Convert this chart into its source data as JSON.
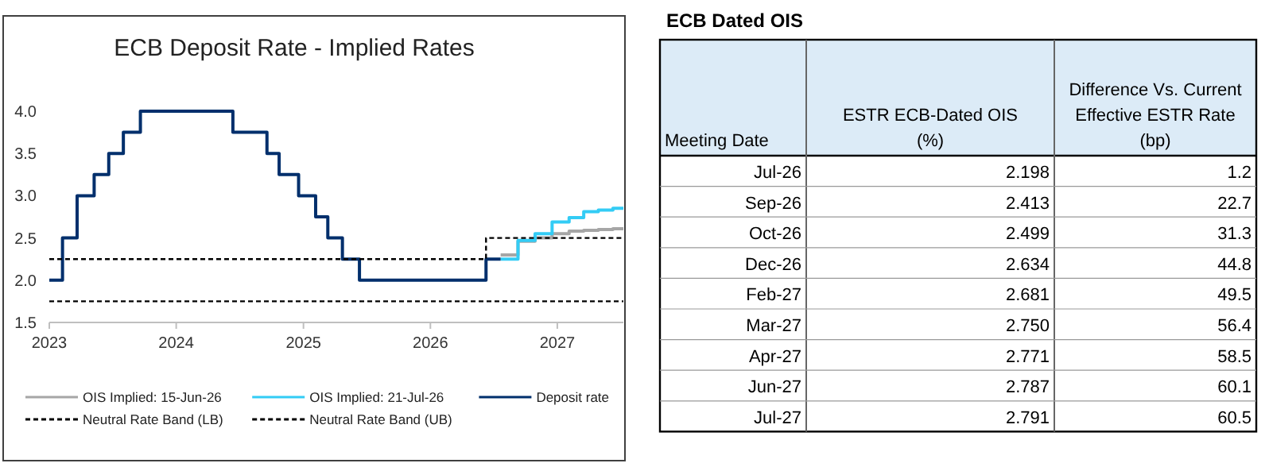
{
  "chart_data": [
    {
      "type": "step",
      "title": "ECB Deposit Rate - Implied Rates",
      "xlim": [
        "2023-01-01",
        "2027-07-10"
      ],
      "xticks": [
        "2023",
        "2024",
        "2025",
        "2026",
        "2027"
      ],
      "ylim": [
        1.5,
        4.0
      ],
      "yticks": [
        {
          "value": 1.5,
          "label": "1.5"
        },
        {
          "value": 2.0,
          "label": "2.0"
        },
        {
          "value": 2.5,
          "label": "2.5"
        },
        {
          "value": 3.0,
          "label": "3.0"
        },
        {
          "value": 3.5,
          "label": "3.5"
        },
        {
          "value": 4.0,
          "label": "4.0"
        }
      ],
      "grid": false,
      "legend": "bottom",
      "series": [
        {
          "name": "OIS Implied: 15-Jun-26",
          "color": "#a6a6a6",
          "x": [
            "2026-07-22",
            "2026-09-10",
            "2026-10-29",
            "2026-12-17",
            "2027-02-04",
            "2027-03-18",
            "2027-04-29",
            "2027-06-10",
            "2027-07-10"
          ],
          "values": [
            2.3,
            2.46,
            2.5,
            2.55,
            2.58,
            2.59,
            2.6,
            2.61,
            2.61
          ]
        },
        {
          "name": "OIS Implied: 21-Jul-26",
          "color": "#33ccf5",
          "x": [
            "2026-07-22",
            "2026-09-10",
            "2026-10-29",
            "2026-12-17",
            "2027-02-04",
            "2027-03-18",
            "2027-04-29",
            "2027-06-10",
            "2027-07-10"
          ],
          "values": [
            2.25,
            2.47,
            2.55,
            2.69,
            2.74,
            2.81,
            2.83,
            2.85,
            2.85
          ]
        },
        {
          "name": "Deposit rate",
          "color": "#002f6c",
          "x": [
            "2023-01-01",
            "2023-02-08",
            "2023-03-22",
            "2023-05-10",
            "2023-06-21",
            "2023-08-02",
            "2023-09-20",
            "2024-06-12",
            "2024-09-18",
            "2024-10-23",
            "2024-12-18",
            "2025-02-05",
            "2025-03-12",
            "2025-04-23",
            "2025-06-11",
            "2026-06-10",
            "2026-07-22"
          ],
          "values": [
            2.0,
            2.5,
            3.0,
            3.25,
            3.5,
            3.75,
            4.0,
            3.75,
            3.5,
            3.25,
            3.0,
            2.75,
            2.5,
            2.25,
            2.0,
            2.25,
            2.25
          ]
        },
        {
          "name": "Neutral Rate Band (LB)",
          "color": "#000000",
          "line_style": "dashed",
          "x": [
            "2023-01-01",
            "2027-07-10"
          ],
          "values": [
            1.75,
            1.75
          ]
        },
        {
          "name": "Neutral Rate Band (UB)",
          "color": "#000000",
          "line_style": "dashed",
          "x": [
            "2023-01-01",
            "2026-06-10",
            "2027-07-10"
          ],
          "values": [
            2.25,
            2.5,
            2.5
          ]
        }
      ]
    },
    {
      "type": "other",
      "title": "ECB Dated OIS",
      "xlabel": "Meeting Date",
      "categories": [
        "Jul-26",
        "Sep-26",
        "Oct-26",
        "Dec-26",
        "Feb-27",
        "Mar-27",
        "Apr-27",
        "Jun-27",
        "Jul-27"
      ],
      "series": [
        {
          "name": "ESTR ECB-Dated OIS (%)",
          "values": [
            2.198,
            2.413,
            2.499,
            2.634,
            2.681,
            2.75,
            2.771,
            2.787,
            2.791
          ],
          "value_labels": [
            "2.198",
            "2.413",
            "2.499",
            "2.634",
            "2.681",
            "2.750",
            "2.771",
            "2.787",
            "2.791"
          ]
        },
        {
          "name": "Difference Vs. Current Effective ESTR Rate (bp)",
          "values": [
            1.2,
            22.7,
            31.3,
            44.8,
            49.5,
            56.4,
            58.5,
            60.1,
            60.5
          ],
          "value_labels": [
            "1.2",
            "22.7",
            "31.3",
            "44.8",
            "49.5",
            "56.4",
            "58.5",
            "60.1",
            "60.5"
          ]
        }
      ]
    }
  ]
}
